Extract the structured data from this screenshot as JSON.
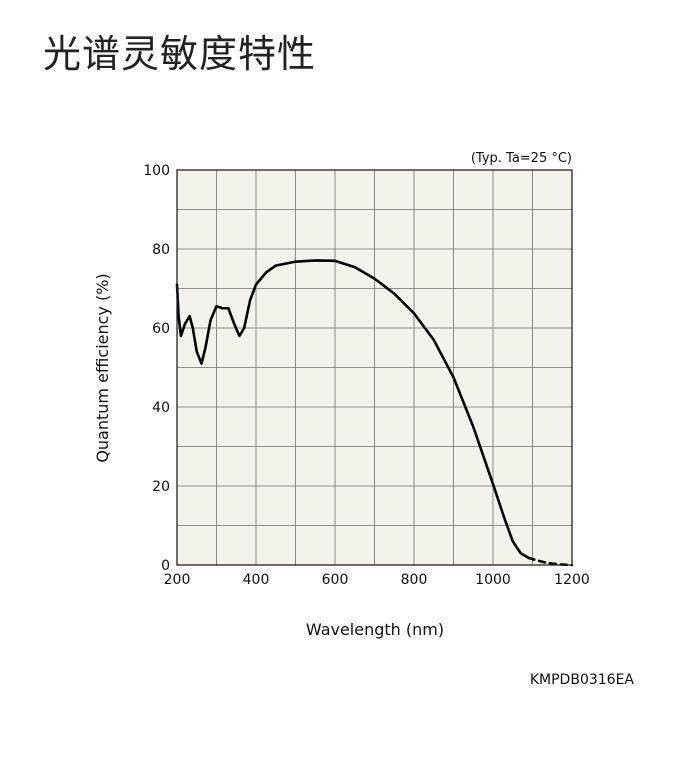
{
  "page": {
    "title": "光谱灵敏度特性"
  },
  "chart_data": {
    "type": "line",
    "title": "",
    "xlabel": "Wavelength (nm)",
    "ylabel": "Quantum efficiency (%)",
    "xlim": [
      200,
      1200
    ],
    "ylim": [
      0,
      100
    ],
    "x_ticks": [
      200,
      400,
      600,
      800,
      1000,
      1200
    ],
    "y_ticks": [
      0,
      20,
      40,
      60,
      80,
      100
    ],
    "grid": true,
    "annotation": "(Typ. Ta=25 °C)",
    "figure_code": "KMPDB0316EA",
    "series": [
      {
        "line_style": "solid",
        "color": "#000000",
        "points": [
          [
            200,
            71
          ],
          [
            204,
            63
          ],
          [
            210,
            58
          ],
          [
            220,
            61
          ],
          [
            232,
            63
          ],
          [
            240,
            60
          ],
          [
            250,
            54
          ],
          [
            262,
            51
          ],
          [
            272,
            55
          ],
          [
            285,
            62
          ],
          [
            300,
            65.5
          ],
          [
            315,
            65
          ],
          [
            330,
            65
          ],
          [
            345,
            61
          ],
          [
            358,
            58
          ],
          [
            370,
            60
          ],
          [
            385,
            67
          ],
          [
            400,
            71
          ],
          [
            425,
            74
          ],
          [
            450,
            75.8
          ],
          [
            500,
            76.8
          ],
          [
            550,
            77.1
          ],
          [
            600,
            77
          ],
          [
            650,
            75.4
          ],
          [
            700,
            72.5
          ],
          [
            750,
            68.7
          ],
          [
            800,
            63.7
          ],
          [
            850,
            57
          ],
          [
            900,
            47.5
          ],
          [
            950,
            35
          ],
          [
            1000,
            20.5
          ],
          [
            1030,
            11.5
          ],
          [
            1050,
            6
          ],
          [
            1070,
            3
          ],
          [
            1090,
            1.8
          ]
        ]
      },
      {
        "line_style": "dashed",
        "color": "#000000",
        "points": [
          [
            1090,
            1.8
          ],
          [
            1110,
            1.2
          ],
          [
            1130,
            0.7
          ],
          [
            1150,
            0.35
          ],
          [
            1170,
            0.15
          ],
          [
            1190,
            0.03
          ],
          [
            1200,
            0
          ]
        ]
      }
    ]
  },
  "colors": {
    "plot_background": "#f4f2ea",
    "grid": "#6f6f6f",
    "axis": "#222222",
    "text": "#111111"
  }
}
